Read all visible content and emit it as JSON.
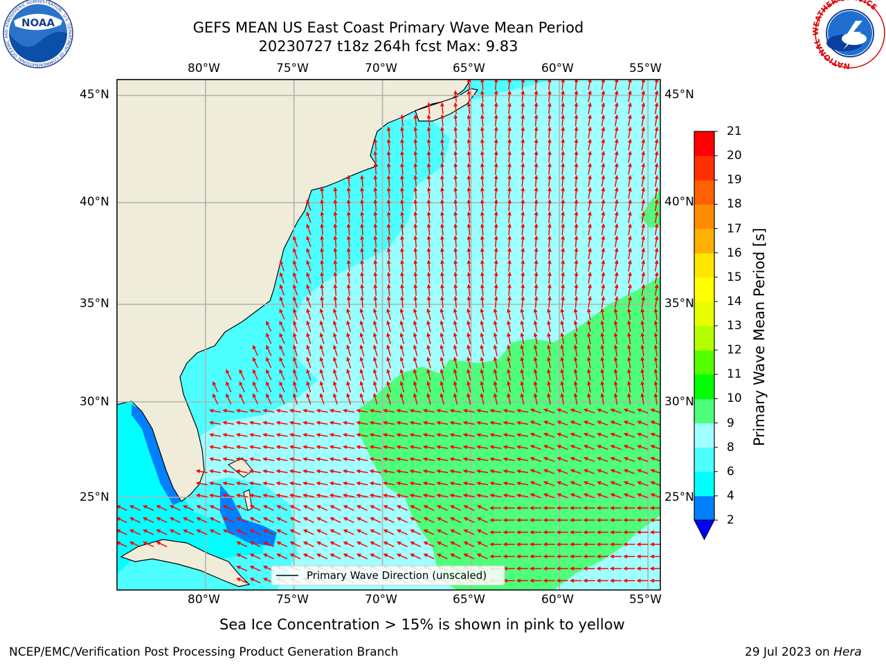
{
  "header": {
    "title_line1": "GEFS MEAN US East Coast Primary Wave Mean Period",
    "title_line2": "20230727 t18z 264h fcst   Max: 9.83",
    "left_logo_text": "NOAA",
    "left_logo_ring": "NATIONAL OCEANIC AND ATMOSPHERIC ADMINISTRATION · U.S. DEPARTMENT OF COMMERCE",
    "right_logo_ring": "NATIONAL WEATHER SERVICE"
  },
  "map": {
    "lon_labels": [
      "80°W",
      "75°W",
      "70°W",
      "65°W",
      "60°W",
      "55°W"
    ],
    "lat_labels": [
      "45°N",
      "40°N",
      "35°N",
      "30°N",
      "25°N"
    ],
    "lon_values": [
      -80,
      -75,
      -70,
      -65,
      -60,
      -55
    ],
    "lat_values": [
      45,
      40,
      35,
      30,
      25
    ],
    "extent": {
      "lon_min": -85,
      "lon_max": -54.3,
      "lat_min": 20.4,
      "lat_max": 45.8
    },
    "legend_label": "Primary Wave Direction (unscaled)",
    "colors": {
      "land": "#efedda",
      "ocean_dark": "#00ffff",
      "ocean_mid": "#4dffff",
      "ocean_light": "#a0ffff",
      "green": "#4dff7a",
      "blue": "#0080ff",
      "arrow": "#ff0000",
      "grid": "#b0b0b0"
    }
  },
  "colorbar": {
    "label": "Primary Wave Mean Period [s]",
    "tick_labels": [
      "21",
      "20",
      "19",
      "18",
      "17",
      "16",
      "15",
      "14",
      "13",
      "12",
      "11",
      "10",
      "9",
      "8",
      "6",
      "4",
      "2"
    ],
    "bins": [
      {
        "color": "#0000ff"
      },
      {
        "color": "#0080ff"
      },
      {
        "color": "#00ffff"
      },
      {
        "color": "#4dffff"
      },
      {
        "color": "#a0ffff"
      },
      {
        "color": "#4dff7a"
      },
      {
        "color": "#00ff00"
      },
      {
        "color": "#55ff00"
      },
      {
        "color": "#b3ff00"
      },
      {
        "color": "#e6ff00"
      },
      {
        "color": "#ffff00"
      },
      {
        "color": "#ffe600"
      },
      {
        "color": "#ffb000"
      },
      {
        "color": "#ff8c00"
      },
      {
        "color": "#ff6000"
      },
      {
        "color": "#ff3000"
      },
      {
        "color": "#ff0000"
      }
    ]
  },
  "caption": "Sea Ice Concentration > 15% is shown in pink to yellow",
  "footer": {
    "left": "NCEP/EMC/Verification Post Processing Product Generation Branch",
    "date": "29 Jul 2023 on ",
    "machine": "Hera"
  }
}
